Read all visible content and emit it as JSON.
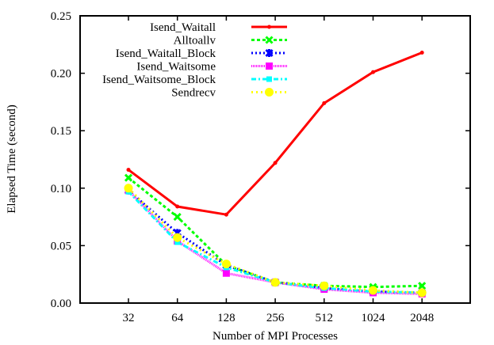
{
  "chart_data": {
    "type": "line",
    "title": "",
    "xlabel": "Number of MPI Processes",
    "ylabel": "Elapsed Time (second)",
    "x": [
      "32",
      "64",
      "128",
      "256",
      "512",
      "1024",
      "2048"
    ],
    "ylim": [
      0,
      0.25
    ],
    "yticks": [
      "0.00",
      "0.05",
      "0.10",
      "0.15",
      "0.20",
      "0.25"
    ],
    "grid": false,
    "legend_position": "top-left inside",
    "series": [
      {
        "name": "Isend_Waitall",
        "color": "#ff0000",
        "dash": "",
        "width": 3,
        "marker": "plus",
        "values": [
          0.116,
          0.084,
          0.077,
          0.122,
          0.174,
          0.201,
          0.218
        ]
      },
      {
        "name": "Alltoallv",
        "color": "#00ff00",
        "dash": "4,3",
        "width": 3,
        "marker": "cross",
        "values": [
          0.109,
          0.075,
          0.033,
          0.018,
          0.015,
          0.014,
          0.015
        ]
      },
      {
        "name": "Isend_Waitall_Block",
        "color": "#0000ff",
        "dash": "2,3",
        "width": 3,
        "marker": "star",
        "values": [
          0.098,
          0.061,
          0.033,
          0.018,
          0.013,
          0.01,
          0.009
        ]
      },
      {
        "name": "Isend_Waitsome",
        "color": "#ff00ff",
        "dash": "1,1",
        "width": 3,
        "marker": "square",
        "values": [
          0.098,
          0.054,
          0.026,
          0.018,
          0.012,
          0.009,
          0.008
        ]
      },
      {
        "name": "Isend_Waitsome_Block",
        "color": "#00ffff",
        "dash": "6,3,2,3",
        "width": 3,
        "marker": "small-square",
        "values": [
          0.097,
          0.053,
          0.031,
          0.018,
          0.013,
          0.01,
          0.009
        ]
      },
      {
        "name": "Sendrecv",
        "color": "#ffff00",
        "dash": "2,4",
        "width": 3,
        "marker": "circle",
        "values": [
          0.1,
          0.057,
          0.034,
          0.018,
          0.015,
          0.011,
          0.009
        ]
      }
    ]
  }
}
